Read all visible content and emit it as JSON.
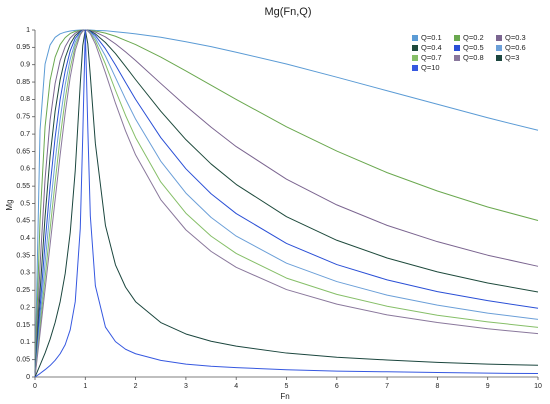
{
  "chart_data": {
    "type": "line",
    "title": "Mg(Fn,Q)",
    "x_label": "Fn",
    "y_label": "Mg",
    "x": [
      0,
      0.1,
      0.2,
      0.3,
      0.4,
      0.5,
      0.6,
      0.7,
      0.8,
      0.9,
      0.95,
      1,
      1.05,
      1.1,
      1.2,
      1.4,
      1.6,
      1.8,
      2,
      2.5,
      3,
      3.5,
      4,
      5,
      6,
      7,
      8,
      9,
      10
    ],
    "xlim": [
      0,
      10
    ],
    "xticks": [
      0,
      1,
      2,
      3,
      4,
      5,
      6,
      7,
      8,
      9,
      10
    ],
    "ylim": [
      0,
      1
    ],
    "yticks": [
      0,
      0.05,
      0.1,
      0.15,
      0.2,
      0.25,
      0.3,
      0.35,
      0.4,
      0.45,
      0.5,
      0.55,
      0.6,
      0.65,
      0.7,
      0.75,
      0.8,
      0.85,
      0.9,
      0.95,
      1
    ],
    "grid": false,
    "legend": "top-right",
    "series": [
      {
        "name": "Q=0.1",
        "color": "#5b9bd5",
        "values": [
          0,
          0.711,
          0.902,
          0.957,
          0.979,
          0.989,
          0.994,
          0.997,
          0.999,
          1,
          1,
          1,
          1,
          1,
          0.999,
          0.998,
          0.995,
          0.992,
          0.989,
          0.979,
          0.966,
          0.952,
          0.936,
          0.902,
          0.864,
          0.825,
          0.786,
          0.747,
          0.711
        ]
      },
      {
        "name": "Q=0.2",
        "color": "#6aa84f",
        "values": [
          0,
          0.451,
          0.721,
          0.855,
          0.922,
          0.958,
          0.978,
          0.99,
          0.996,
          0.999,
          1,
          1,
          1,
          0.999,
          0.997,
          0.991,
          0.982,
          0.97,
          0.958,
          0.922,
          0.882,
          0.841,
          0.8,
          0.721,
          0.651,
          0.589,
          0.536,
          0.49,
          0.451
        ]
      },
      {
        "name": "Q=0.3",
        "color": "#7b6590",
        "values": [
          0,
          0.319,
          0.57,
          0.74,
          0.846,
          0.912,
          0.952,
          0.977,
          0.991,
          0.998,
          1,
          1,
          1,
          0.998,
          0.994,
          0.98,
          0.96,
          0.937,
          0.912,
          0.846,
          0.781,
          0.72,
          0.664,
          0.57,
          0.496,
          0.437,
          0.39,
          0.351,
          0.319
        ]
      },
      {
        "name": "Q=0.4",
        "color": "#1e4a3c",
        "values": [
          0,
          0.245,
          0.462,
          0.636,
          0.766,
          0.857,
          0.92,
          0.96,
          0.984,
          0.996,
          0.999,
          1,
          0.999,
          0.997,
          0.989,
          0.964,
          0.932,
          0.895,
          0.857,
          0.766,
          0.684,
          0.614,
          0.555,
          0.462,
          0.394,
          0.343,
          0.303,
          0.271,
          0.245
        ]
      },
      {
        "name": "Q=0.5",
        "color": "#2a4fd6",
        "values": [
          0,
          0.198,
          0.385,
          0.55,
          0.69,
          0.8,
          0.882,
          0.94,
          0.976,
          0.994,
          0.999,
          1,
          0.999,
          0.995,
          0.984,
          0.946,
          0.899,
          0.849,
          0.8,
          0.69,
          0.6,
          0.528,
          0.471,
          0.385,
          0.324,
          0.28,
          0.246,
          0.22,
          0.198
        ]
      },
      {
        "name": "Q=0.6",
        "color": "#6b9fd8",
        "values": [
          0,
          0.166,
          0.328,
          0.482,
          0.622,
          0.743,
          0.842,
          0.916,
          0.965,
          0.992,
          0.998,
          1,
          0.998,
          0.993,
          0.977,
          0.925,
          0.863,
          0.801,
          0.743,
          0.622,
          0.53,
          0.46,
          0.406,
          0.328,
          0.275,
          0.236,
          0.207,
          0.184,
          0.166
        ]
      },
      {
        "name": "Q=0.7",
        "color": "#86bf68",
        "values": [
          0,
          0.143,
          0.285,
          0.426,
          0.562,
          0.69,
          0.801,
          0.891,
          0.954,
          0.989,
          0.997,
          1,
          0.998,
          0.991,
          0.969,
          0.902,
          0.826,
          0.754,
          0.69,
          0.562,
          0.472,
          0.406,
          0.356,
          0.285,
          0.238,
          0.204,
          0.178,
          0.159,
          0.143
        ]
      },
      {
        "name": "Q=0.8",
        "color": "#8a789c",
        "values": [
          0,
          0.125,
          0.252,
          0.381,
          0.511,
          0.64,
          0.761,
          0.864,
          0.941,
          0.986,
          0.997,
          1,
          0.997,
          0.989,
          0.96,
          0.877,
          0.789,
          0.709,
          0.64,
          0.511,
          0.424,
          0.362,
          0.316,
          0.252,
          0.21,
          0.179,
          0.157,
          0.139,
          0.125
        ]
      },
      {
        "name": "Q=3",
        "color": "#1b463e",
        "values": [
          0,
          0.034,
          0.069,
          0.109,
          0.157,
          0.217,
          0.298,
          0.416,
          0.595,
          0.845,
          0.956,
          1,
          0.96,
          0.868,
          0.673,
          0.437,
          0.323,
          0.259,
          0.217,
          0.157,
          0.124,
          0.103,
          0.089,
          0.069,
          0.057,
          0.049,
          0.042,
          0.037,
          0.034
        ]
      },
      {
        "name": "Q=10",
        "color": "#3658e0",
        "values": [
          0,
          0.01,
          0.021,
          0.033,
          0.048,
          0.067,
          0.093,
          0.136,
          0.217,
          0.428,
          0.698,
          1,
          0.716,
          0.464,
          0.263,
          0.144,
          0.102,
          0.08,
          0.067,
          0.048,
          0.037,
          0.031,
          0.027,
          0.021,
          0.017,
          0.015,
          0.013,
          0.011,
          0.01
        ]
      }
    ]
  }
}
